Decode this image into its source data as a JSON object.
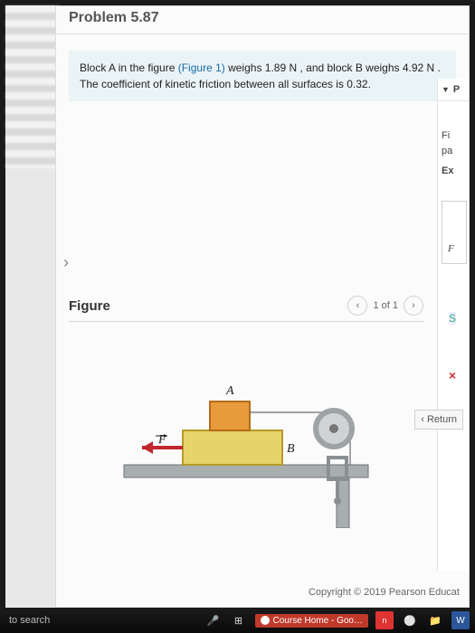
{
  "problem": {
    "title": "Problem 5.87"
  },
  "prompt": {
    "before_link": "Block A in the figure ",
    "link_text": "(Figure 1)",
    "after_link": " weighs 1.89 N , and block B weighs 4.92 N . The coefficient of kinetic friction between all surfaces is 0.32."
  },
  "right_panel": {
    "header_letter": "P",
    "line1": "Fi",
    "line2": "pa",
    "line3": "Ex",
    "box_letter": "F",
    "s_letter": "S",
    "x_mark": "×",
    "return_label": "Return"
  },
  "figure": {
    "heading": "Figure",
    "pager_text": "1 of 1",
    "labels": {
      "A": "A",
      "B": "B",
      "F": "F"
    },
    "colors": {
      "table": "#a8adb0",
      "table_edge": "#6d7275",
      "blockB_fill": "#e6d36a",
      "blockB_stroke": "#b59a2a",
      "blockA_fill": "#e79b3a",
      "blockA_stroke": "#b36b1a",
      "arrow": "#c1272d",
      "pulley_outer": "#9ea3a6",
      "pulley_inner": "#cfd3d5",
      "rope": "#6b6b6b",
      "clamp": "#8a8f92"
    }
  },
  "copyright": "Copyright © 2019 Pearson Educat",
  "taskbar": {
    "search_placeholder": "to search",
    "chrome_label": "Course Home - Goo…"
  }
}
